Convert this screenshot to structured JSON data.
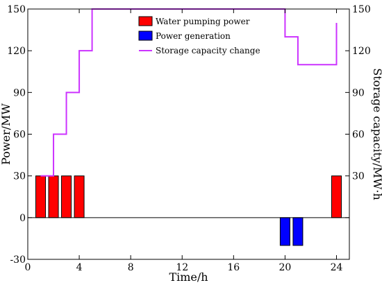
{
  "chart_data": {
    "type": "bar",
    "xlabel": "Time/h",
    "ylabel_left": "Power/MW",
    "ylabel_right": "Storage capacity/MW·h",
    "xlim": [
      0,
      25
    ],
    "ylim_left": [
      -30,
      150
    ],
    "ylim_right": [
      -30,
      150
    ],
    "x_ticks": [
      0,
      4,
      8,
      12,
      16,
      20,
      24
    ],
    "y_ticks_left": [
      -30,
      0,
      30,
      60,
      90,
      120,
      150
    ],
    "y_ticks_right": [
      30,
      60,
      90,
      120,
      150
    ],
    "grid": false,
    "legend_position": "top-center",
    "colors": {
      "pumping": "#ff0000",
      "generation": "#0000ff",
      "storage": "#cc33ff"
    },
    "series": [
      {
        "name": "Water pumping power",
        "kind": "bar",
        "x": [
          1,
          2,
          3,
          4,
          24
        ],
        "values": [
          30,
          30,
          30,
          30,
          30
        ]
      },
      {
        "name": "Power generation",
        "kind": "bar",
        "x": [
          20,
          21
        ],
        "values": [
          -20,
          -20
        ]
      },
      {
        "name": "Storage capacity change",
        "kind": "step-line",
        "x": [
          1,
          2,
          2,
          3,
          3,
          4,
          4,
          5,
          5,
          20,
          20,
          21,
          21,
          24,
          24
        ],
        "values": [
          30,
          30,
          60,
          60,
          90,
          90,
          120,
          120,
          150,
          150,
          130,
          130,
          110,
          110,
          140
        ]
      }
    ]
  }
}
